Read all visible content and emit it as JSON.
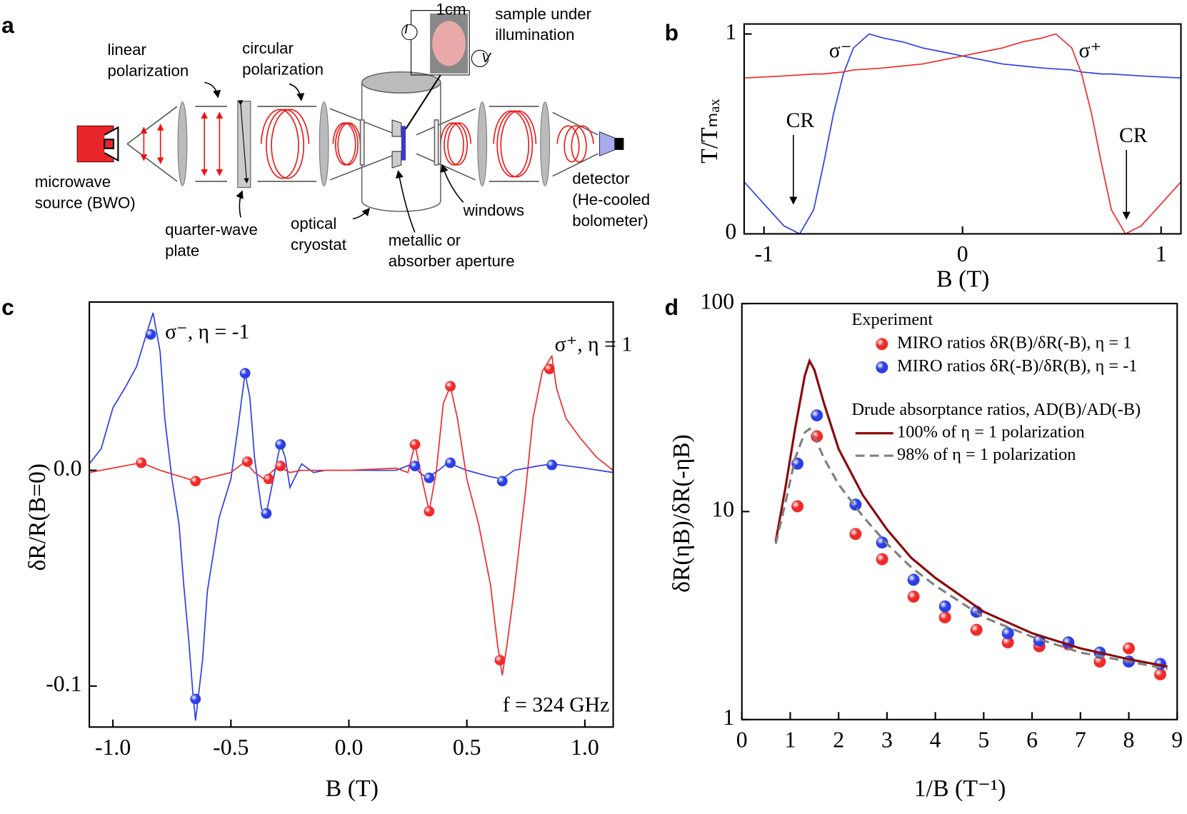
{
  "diagram": {
    "panel": "a",
    "labels": [
      [
        "linear",
        "polarization"
      ],
      [
        "circular",
        "polarization"
      ],
      [
        "1cm"
      ],
      [
        "sample under",
        "illumination"
      ],
      [
        "I"
      ],
      [
        "V"
      ],
      [
        "microwave",
        "source (BWO)"
      ],
      [
        "quarter-wave",
        "plate"
      ],
      [
        "optical",
        "cryostat"
      ],
      [
        "metallic or",
        "absorber aperture"
      ],
      [
        "windows"
      ],
      [
        "detector",
        "(He-cooled",
        "bolometer)"
      ]
    ]
  },
  "chart_data": [
    {
      "type": "line",
      "panel": "b",
      "x_label": "B (T)",
      "y_label": "T/Tₘₐₓ",
      "xlim": [
        -1.1,
        1.1
      ],
      "ylim": [
        0,
        1.05
      ],
      "xticks": [
        -1,
        0,
        1
      ],
      "yticks": [
        0,
        1
      ],
      "annotations": [
        "σ⁻",
        "σ⁺",
        "CR",
        "CR"
      ],
      "series": [
        {
          "kind": "line",
          "color": "#2b3fe6",
          "x": [
            -1.1,
            -1.0,
            -0.9,
            -0.82,
            -0.75,
            -0.7,
            -0.65,
            -0.6,
            -0.55,
            -0.47,
            -0.4,
            -0.3,
            -0.2,
            -0.1,
            0,
            0.1,
            0.2,
            0.3,
            0.4,
            0.47,
            0.55,
            0.6,
            0.65,
            0.7,
            0.75,
            0.82,
            0.9,
            1.0,
            1.1
          ],
          "values": [
            0.26,
            0.15,
            0.04,
            0,
            0.12,
            0.35,
            0.6,
            0.8,
            0.93,
            1.0,
            0.98,
            0.96,
            0.93,
            0.91,
            0.89,
            0.87,
            0.85,
            0.84,
            0.83,
            0.825,
            0.82,
            0.81,
            0.805,
            0.8,
            0.8,
            0.795,
            0.79,
            0.785,
            0.78
          ]
        },
        {
          "kind": "line",
          "color": "#f02a2a",
          "x": [
            -1.1,
            -1.0,
            -0.9,
            -0.82,
            -0.75,
            -0.7,
            -0.65,
            -0.6,
            -0.55,
            -0.47,
            -0.4,
            -0.3,
            -0.2,
            -0.1,
            0,
            0.1,
            0.2,
            0.3,
            0.4,
            0.47,
            0.55,
            0.6,
            0.65,
            0.7,
            0.75,
            0.82,
            0.9,
            1.0,
            1.1
          ],
          "values": [
            0.78,
            0.785,
            0.79,
            0.795,
            0.8,
            0.8,
            0.805,
            0.81,
            0.82,
            0.825,
            0.83,
            0.84,
            0.85,
            0.87,
            0.89,
            0.91,
            0.93,
            0.96,
            0.98,
            1.0,
            0.93,
            0.8,
            0.6,
            0.35,
            0.12,
            0,
            0.04,
            0.15,
            0.26
          ]
        }
      ]
    },
    {
      "type": "line",
      "panel": "c",
      "x_label": "B (T)",
      "y_label": "δR/R(B=0)",
      "xlim": [
        -1.1,
        1.12
      ],
      "ylim": [
        -0.119,
        0.078
      ],
      "xticks": [
        {
          "value": -1,
          "label": "-1.0"
        },
        -0.5,
        {
          "value": 0,
          "label": "0.0"
        },
        0.5,
        {
          "value": 1,
          "label": "1.0"
        }
      ],
      "yticks": [
        -0.1,
        {
          "value": 0,
          "label": "0.0"
        }
      ],
      "annotations": [
        "σ⁻, η = -1",
        "σ⁺, η = 1",
        "f = 324 GHz"
      ],
      "series": [
        {
          "kind": "line",
          "color": "#2b3fe6",
          "x": [
            -1.1,
            -1.05,
            -1.0,
            -0.95,
            -0.9,
            -0.85,
            -0.83,
            -0.8,
            -0.78,
            -0.75,
            -0.72,
            -0.7,
            -0.68,
            -0.66,
            -0.65,
            -0.62,
            -0.6,
            -0.55,
            -0.5,
            -0.47,
            -0.44,
            -0.42,
            -0.4,
            -0.37,
            -0.35,
            -0.32,
            -0.29,
            -0.27,
            -0.25,
            -0.2,
            -0.15,
            -0.1,
            0,
            0.2,
            0.27,
            0.3,
            0.33,
            0.38,
            0.42,
            0.5,
            0.6,
            0.65,
            0.7,
            0.8,
            0.86,
            1.0,
            1.12
          ],
          "values": [
            0.003,
            0.01,
            0.029,
            0.038,
            0.048,
            0.066,
            0.073,
            0.055,
            0.024,
            -0.004,
            -0.025,
            -0.053,
            -0.077,
            -0.105,
            -0.116,
            -0.088,
            -0.056,
            -0.022,
            -0.004,
            0.02,
            0.045,
            0.034,
            0.006,
            -0.018,
            -0.02,
            -0.004,
            0.0125,
            0.006,
            -0.008,
            0.003,
            -0.001,
            0,
            0,
            0,
            0.003,
            -0.001,
            -0.0035,
            0,
            0.0035,
            0,
            -0.003,
            -0.004,
            0,
            0.002,
            0.003,
            0.001,
            -0.001
          ]
        },
        {
          "kind": "line",
          "color": "#f02a2a",
          "x": [
            -1.1,
            -0.88,
            -0.8,
            -0.65,
            -0.5,
            -0.44,
            -0.4,
            -0.36,
            -0.3,
            -0.25,
            -0.2,
            0,
            0.2,
            0.25,
            0.28,
            0.31,
            0.34,
            0.37,
            0.4,
            0.43,
            0.46,
            0.5,
            0.55,
            0.6,
            0.63,
            0.65,
            0.67,
            0.7,
            0.75,
            0.78,
            0.82,
            0.86,
            0.88,
            0.92,
            0.98,
            1.05,
            1.12
          ],
          "values": [
            -0.001,
            0.0035,
            0,
            -0.005,
            -0.001,
            0.004,
            -0.001,
            -0.004,
            0.002,
            -0.001,
            0,
            0,
            0.001,
            -0.001,
            0.012,
            -0.004,
            -0.019,
            -0.001,
            0.031,
            0.039,
            0.024,
            -0.004,
            -0.025,
            -0.053,
            -0.081,
            -0.095,
            -0.081,
            -0.056,
            -0.008,
            0.024,
            0.046,
            0.053,
            0.038,
            0.024,
            0.015,
            0.006,
            0
          ]
        },
        {
          "kind": "scatter",
          "color": "#2b3fe6",
          "x": [
            -0.84,
            -0.65,
            -0.44,
            -0.35,
            -0.29,
            0.28,
            0.34,
            0.43,
            0.65,
            0.86
          ],
          "values": [
            0.063,
            -0.106,
            0.045,
            -0.02,
            0.012,
            0.002,
            -0.0035,
            0.0035,
            -0.005,
            0.0025
          ]
        },
        {
          "kind": "scatter",
          "color": "#f02a2a",
          "x": [
            -0.88,
            -0.65,
            -0.43,
            -0.34,
            -0.29,
            0.28,
            0.34,
            0.43,
            0.64,
            0.85
          ],
          "values": [
            0.0035,
            -0.005,
            0.004,
            -0.004,
            0.002,
            0.012,
            -0.019,
            0.039,
            -0.088,
            0.047
          ]
        }
      ]
    },
    {
      "type": "line",
      "panel": "d",
      "log_y": true,
      "x_label": "1/B (T⁻¹)",
      "y_label": "δR(ηB)/δR(-ηB)",
      "xlim": [
        0,
        9
      ],
      "ylim": [
        1,
        100
      ],
      "xticks": [
        0,
        1,
        2,
        3,
        4,
        5,
        6,
        7,
        8,
        9
      ],
      "yticks": [
        1,
        10,
        100
      ],
      "annotations": [
        "Experiment",
        "Drude absorptance ratios, AD(B)/AD(-B)"
      ],
      "series": [
        {
          "kind": "scatter",
          "name": "MIRO ratios δR(B)/δR(-B), η = 1",
          "color": "#f02a2a",
          "x": [
            1.15,
            1.55,
            2.35,
            2.9,
            3.55,
            4.2,
            4.85,
            5.5,
            6.15,
            6.75,
            7.4,
            8.0,
            8.65
          ],
          "values": [
            10.6,
            23,
            7.8,
            5.9,
            3.9,
            3.1,
            2.7,
            2.35,
            2.25,
            2.3,
            1.9,
            2.2,
            1.65
          ]
        },
        {
          "kind": "scatter",
          "name": "MIRO ratios δR(-B)/δR(B), η = -1",
          "color": "#2b3fe6",
          "x": [
            1.15,
            1.55,
            2.35,
            2.9,
            3.55,
            4.2,
            4.85,
            5.5,
            6.15,
            6.75,
            7.4,
            8.0,
            8.65
          ],
          "values": [
            17,
            29,
            10.8,
            7.1,
            4.7,
            3.5,
            3.3,
            2.6,
            2.4,
            2.35,
            2.1,
            1.9,
            1.85
          ]
        },
        {
          "kind": "line",
          "name": "100% of η = 1 polarization",
          "color": "#8b0a0a",
          "x": [
            0.7,
            0.9,
            1.1,
            1.3,
            1.4,
            1.5,
            1.7,
            2,
            2.5,
            3,
            3.5,
            4,
            5,
            6,
            7,
            8,
            8.8
          ],
          "values": [
            7.2,
            13,
            25,
            45,
            53,
            48,
            33,
            20,
            12,
            8.2,
            6,
            4.8,
            3.3,
            2.6,
            2.2,
            1.95,
            1.8
          ]
        },
        {
          "kind": "line",
          "name": "98% of η = 1 polarization",
          "color": "#808080",
          "dash": true,
          "x": [
            0.7,
            0.9,
            1.1,
            1.3,
            1.4,
            1.5,
            1.7,
            2,
            2.5,
            3,
            3.5,
            4,
            5,
            6,
            7,
            8,
            8.8
          ],
          "values": [
            7,
            11,
            18,
            24,
            25,
            23,
            18,
            13.5,
            9.5,
            7,
            5.4,
            4.4,
            3.1,
            2.5,
            2.1,
            1.9,
            1.75
          ]
        }
      ]
    }
  ]
}
